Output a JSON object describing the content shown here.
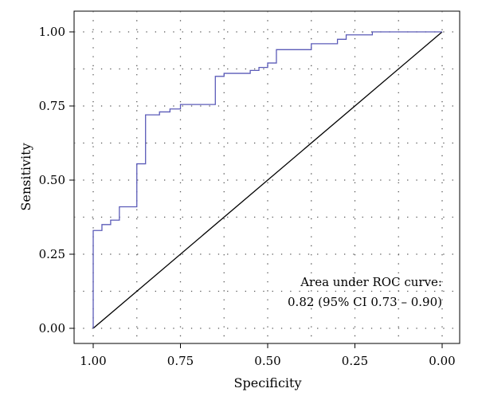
{
  "chart_data": {
    "type": "line",
    "title": "",
    "xlabel": "Specificity",
    "ylabel": "Sensitivity",
    "x_reversed": true,
    "xlim": [
      1.0,
      0.0
    ],
    "ylim": [
      0.0,
      1.0
    ],
    "x_ticks": [
      "1.00",
      "0.75",
      "0.50",
      "0.25",
      "0.00"
    ],
    "y_ticks": [
      "0.00",
      "0.25",
      "0.50",
      "0.75",
      "1.00"
    ],
    "grid": true,
    "annotation": [
      "Area under ROC curve:",
      "0.82 (95% CI 0.73 – 0.90)"
    ],
    "series": [
      {
        "color": "#5b5bb8",
        "style": "step",
        "points": [
          [
            1.0,
            0.0
          ],
          [
            1.0,
            0.33
          ],
          [
            0.975,
            0.33
          ],
          [
            0.975,
            0.35
          ],
          [
            0.95,
            0.35
          ],
          [
            0.95,
            0.365
          ],
          [
            0.925,
            0.365
          ],
          [
            0.925,
            0.41
          ],
          [
            0.875,
            0.41
          ],
          [
            0.875,
            0.555
          ],
          [
            0.85,
            0.555
          ],
          [
            0.85,
            0.72
          ],
          [
            0.81,
            0.72
          ],
          [
            0.81,
            0.73
          ],
          [
            0.78,
            0.73
          ],
          [
            0.78,
            0.74
          ],
          [
            0.75,
            0.74
          ],
          [
            0.75,
            0.755
          ],
          [
            0.65,
            0.755
          ],
          [
            0.65,
            0.85
          ],
          [
            0.625,
            0.85
          ],
          [
            0.625,
            0.86
          ],
          [
            0.55,
            0.86
          ],
          [
            0.55,
            0.87
          ],
          [
            0.525,
            0.87
          ],
          [
            0.525,
            0.88
          ],
          [
            0.5,
            0.88
          ],
          [
            0.5,
            0.895
          ],
          [
            0.475,
            0.895
          ],
          [
            0.475,
            0.94
          ],
          [
            0.375,
            0.94
          ],
          [
            0.375,
            0.96
          ],
          [
            0.3,
            0.96
          ],
          [
            0.3,
            0.975
          ],
          [
            0.275,
            0.975
          ],
          [
            0.275,
            0.99
          ],
          [
            0.2,
            0.99
          ],
          [
            0.2,
            1.0
          ],
          [
            0.0,
            1.0
          ]
        ]
      },
      {
        "color": "#000000",
        "style": "line",
        "points": [
          [
            1.0,
            0.0
          ],
          [
            0.0,
            1.0
          ]
        ]
      }
    ]
  }
}
